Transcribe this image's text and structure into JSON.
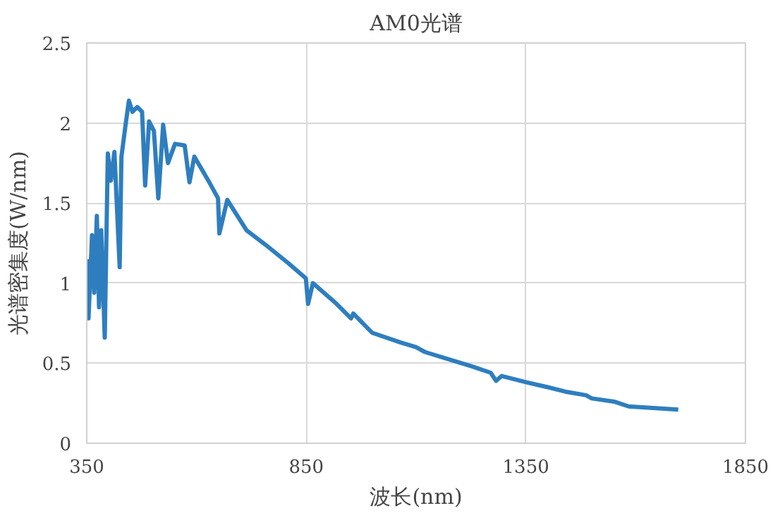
{
  "chart_data": {
    "type": "line",
    "title": "AM0光谱",
    "xlabel": "波长(nm)",
    "ylabel": "光谱密集度(W/nm)",
    "xlim": [
      350,
      1850
    ],
    "xticks": [
      350,
      850,
      1350,
      1850
    ],
    "ylim": [
      0,
      2.5
    ],
    "yticks": [
      0,
      0.5,
      1,
      1.5,
      2,
      2.5
    ],
    "grid": true,
    "series": [
      {
        "color": "#2e7ebf",
        "x": [
          351,
          354,
          362,
          367,
          373,
          378,
          383,
          391,
          398,
          405,
          413,
          425,
          429,
          438,
          446,
          454,
          465,
          476,
          483,
          492,
          503,
          513,
          524,
          535,
          551,
          573,
          584,
          595,
          627,
          649,
          652,
          670,
          714,
          757,
          811,
          849,
          854,
          865,
          919,
          952,
          957,
          1000,
          1064,
          1100,
          1120,
          1227,
          1270,
          1282,
          1295,
          1352,
          1400,
          1444,
          1487,
          1500,
          1551,
          1584,
          1697
        ],
        "values": [
          1.15,
          0.78,
          1.3,
          0.94,
          1.42,
          0.85,
          1.33,
          0.66,
          1.81,
          1.64,
          1.82,
          1.1,
          1.79,
          1.98,
          2.14,
          2.07,
          2.1,
          2.07,
          1.61,
          2.01,
          1.95,
          1.53,
          1.99,
          1.75,
          1.87,
          1.86,
          1.63,
          1.79,
          1.64,
          1.53,
          1.31,
          1.52,
          1.33,
          1.24,
          1.12,
          1.03,
          0.87,
          1.0,
          0.87,
          0.78,
          0.81,
          0.69,
          0.63,
          0.6,
          0.57,
          0.48,
          0.44,
          0.39,
          0.42,
          0.38,
          0.35,
          0.32,
          0.3,
          0.28,
          0.26,
          0.23,
          0.21
        ]
      }
    ]
  }
}
